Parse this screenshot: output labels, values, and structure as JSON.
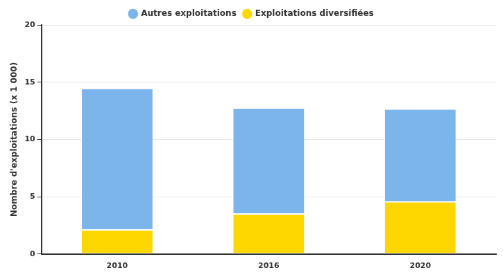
{
  "chart_data": {
    "type": "bar",
    "y_label": "Nombre d'exploitations (x 1 000)",
    "categories": [
      "2010",
      "2016",
      "2020"
    ],
    "series": [
      {
        "name": "Exploitations diversifiées",
        "color": "#ffd700",
        "values": [
          2.1,
          3.5,
          4.55
        ]
      },
      {
        "name": "Autres exploitations",
        "color": "#7cb5ec",
        "values": [
          12.35,
          9.25,
          8.1
        ]
      }
    ],
    "stacked": true,
    "ylim": [
      0,
      20
    ],
    "yticks": [
      0,
      5,
      10,
      15,
      20
    ],
    "grid": true,
    "legend": "top"
  }
}
